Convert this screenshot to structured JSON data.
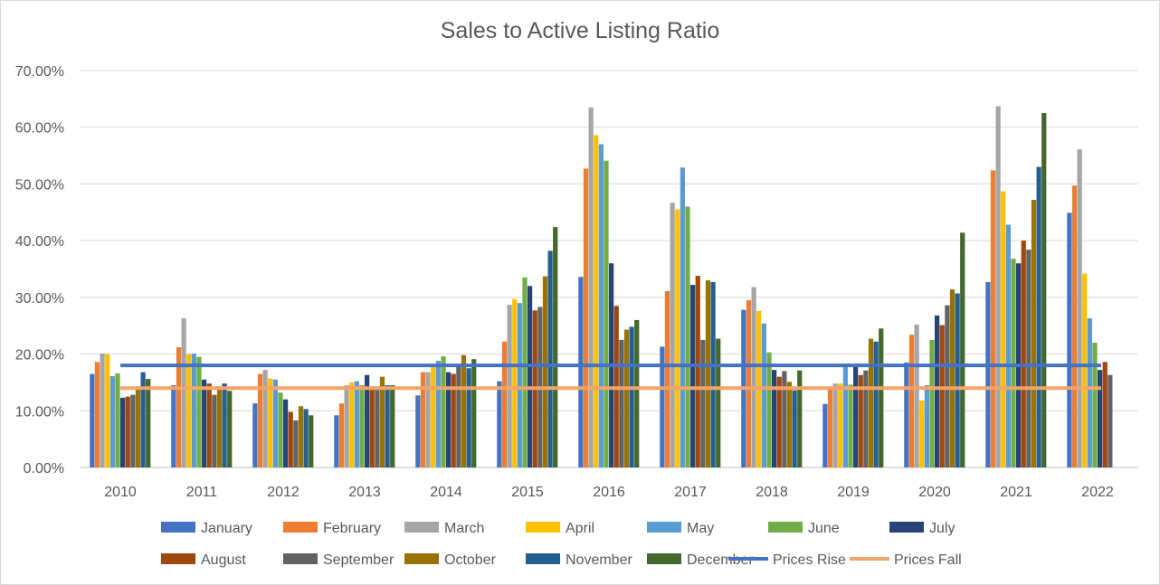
{
  "chart_data": {
    "type": "bar",
    "title": "Sales to Active Listing Ratio",
    "xlabel": "",
    "ylabel": "",
    "ylim": [
      0,
      0.7
    ],
    "y_ticks": [
      "0.00%",
      "10.00%",
      "20.00%",
      "30.00%",
      "40.00%",
      "50.00%",
      "60.00%",
      "70.00%"
    ],
    "grid": true,
    "legend_position": "bottom",
    "categories": [
      "2010",
      "2011",
      "2012",
      "2013",
      "2014",
      "2015",
      "2016",
      "2017",
      "2018",
      "2019",
      "2020",
      "2021",
      "2022"
    ],
    "series": [
      {
        "name": "January",
        "color": "#4472C4",
        "values": [
          0.165,
          0.145,
          0.113,
          0.092,
          0.127,
          0.152,
          0.336,
          0.213,
          0.278,
          0.112,
          0.185,
          0.327,
          0.449
        ]
      },
      {
        "name": "February",
        "color": "#ED7D31",
        "values": [
          0.186,
          0.212,
          0.165,
          0.113,
          0.168,
          0.222,
          0.527,
          0.311,
          0.295,
          0.143,
          0.234,
          0.524,
          0.497
        ]
      },
      {
        "name": "March",
        "color": "#A5A5A5",
        "values": [
          0.201,
          0.263,
          0.172,
          0.145,
          0.168,
          0.287,
          0.635,
          0.467,
          0.318,
          0.148,
          0.252,
          0.637,
          0.561
        ]
      },
      {
        "name": "April",
        "color": "#FFC000",
        "values": [
          0.2,
          0.2,
          0.157,
          0.15,
          0.178,
          0.297,
          0.586,
          0.455,
          0.276,
          0.148,
          0.118,
          0.487,
          0.342
        ]
      },
      {
        "name": "May",
        "color": "#5B9BD5",
        "values": [
          0.161,
          0.201,
          0.155,
          0.152,
          0.188,
          0.29,
          0.57,
          0.529,
          0.254,
          0.18,
          0.145,
          0.428,
          0.263
        ]
      },
      {
        "name": "June",
        "color": "#70AD47",
        "values": [
          0.166,
          0.195,
          0.132,
          0.145,
          0.196,
          0.335,
          0.541,
          0.46,
          0.203,
          0.146,
          0.225,
          0.368,
          0.22
        ]
      },
      {
        "name": "July",
        "color": "#264478",
        "values": [
          0.123,
          0.155,
          0.12,
          0.163,
          0.168,
          0.32,
          0.36,
          0.322,
          0.172,
          0.177,
          0.268,
          0.36,
          0.172
        ]
      },
      {
        "name": "August",
        "color": "#9E480E",
        "values": [
          0.125,
          0.148,
          0.098,
          0.143,
          0.165,
          0.277,
          0.285,
          0.338,
          0.16,
          0.163,
          0.251,
          0.4,
          0.186
        ]
      },
      {
        "name": "September",
        "color": "#636363",
        "values": [
          0.128,
          0.128,
          0.083,
          0.143,
          0.182,
          0.283,
          0.225,
          0.225,
          0.17,
          0.171,
          0.286,
          0.384,
          0.163
        ]
      },
      {
        "name": "October",
        "color": "#997300",
        "values": [
          0.143,
          0.143,
          0.108,
          0.16,
          0.198,
          0.337,
          0.243,
          0.33,
          0.151,
          0.227,
          0.314,
          0.472,
          0.0
        ]
      },
      {
        "name": "November",
        "color": "#255E91",
        "values": [
          0.168,
          0.148,
          0.103,
          0.145,
          0.175,
          0.382,
          0.248,
          0.327,
          0.136,
          0.222,
          0.307,
          0.53,
          0.0
        ]
      },
      {
        "name": "December",
        "color": "#43682B",
        "values": [
          0.156,
          0.135,
          0.092,
          0.145,
          0.191,
          0.424,
          0.26,
          0.227,
          0.171,
          0.245,
          0.414,
          0.625,
          0.0
        ]
      }
    ],
    "reference_lines": [
      {
        "name": "Prices Rise",
        "color": "#4472C4",
        "value": 0.18
      },
      {
        "name": "Prices Fall",
        "color": "#F4A469",
        "value": 0.14
      }
    ]
  }
}
